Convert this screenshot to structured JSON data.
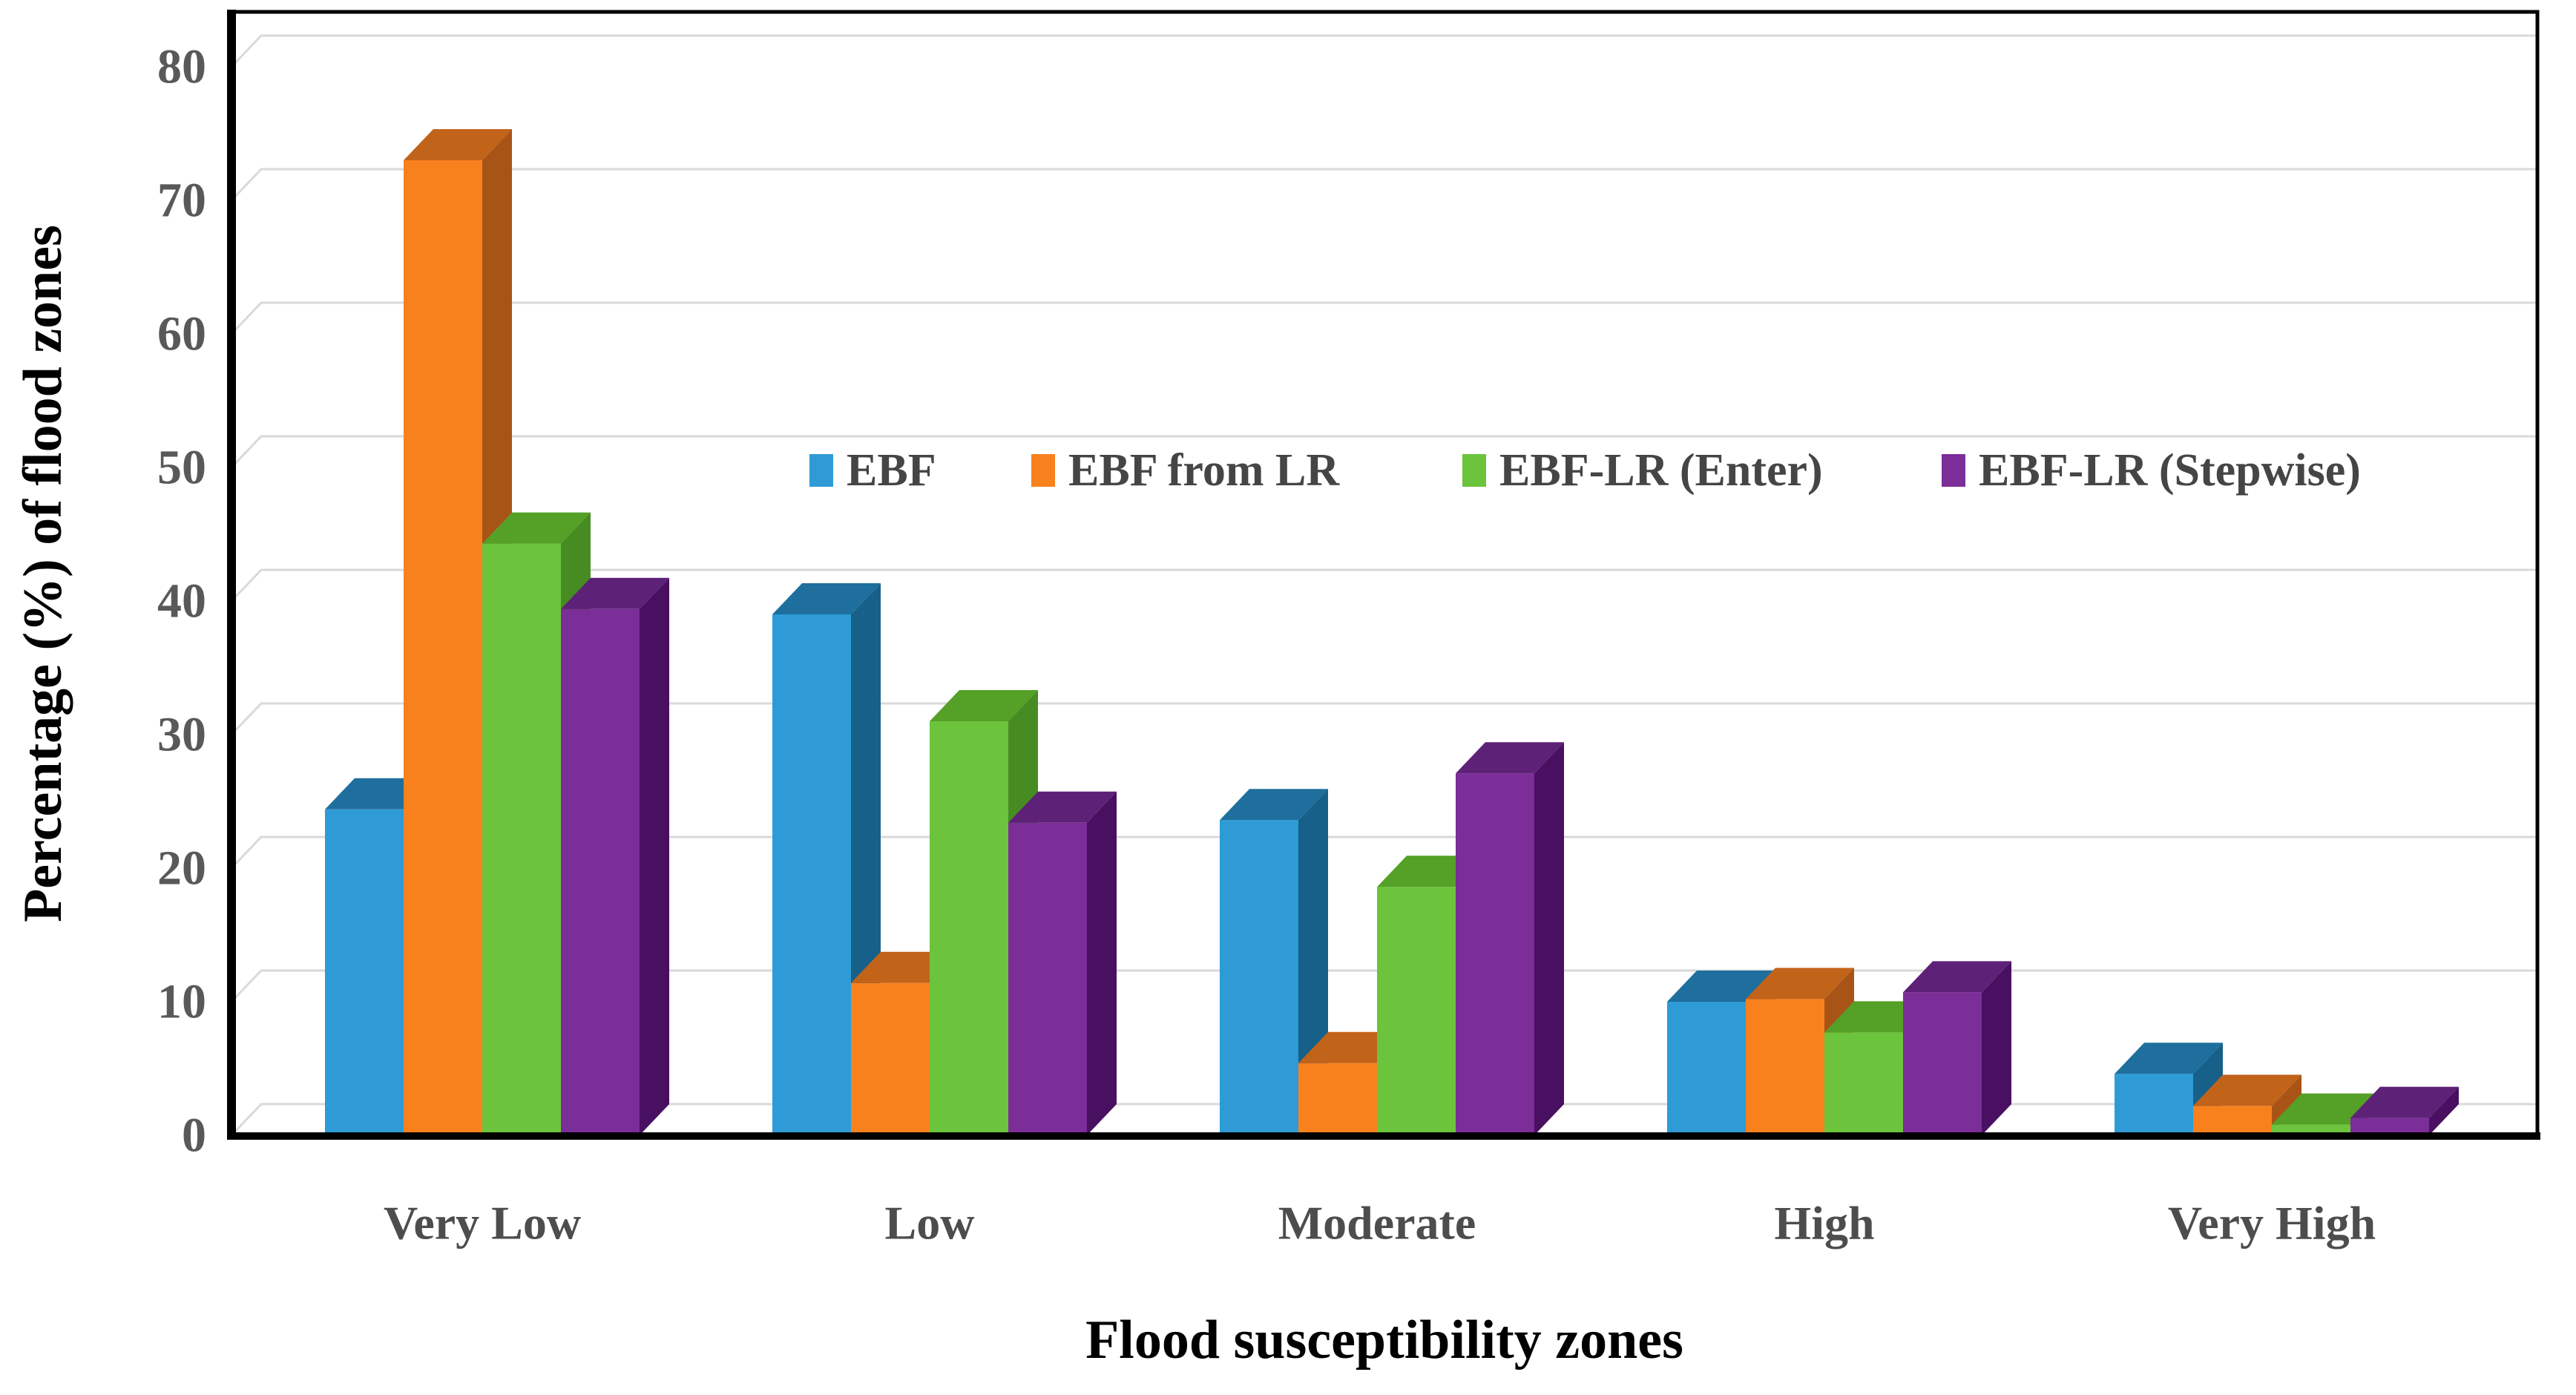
{
  "figure": {
    "type": "3d-clustered-column-chart",
    "background": "#ffffff"
  },
  "chart_data": {
    "type": "bar",
    "title": "",
    "xlabel": "Flood susceptibility zones",
    "ylabel": "Percentage (%) of flood zones",
    "categories": [
      "Very Low",
      "Low",
      "Moderate",
      "High",
      "Very High"
    ],
    "yticks": [
      "0",
      "10",
      "20",
      "30",
      "40",
      "50",
      "60",
      "70",
      "80"
    ],
    "ylim": [
      0,
      80
    ],
    "grid": true,
    "legend_position": "inside-top-center",
    "series": [
      {
        "name": "EBF",
        "values": [
          24.4,
          39.0,
          23.6,
          10.0,
          4.6
        ],
        "color_front": "#2E9BD6",
        "color_top": "#1E6F9D",
        "color_side": "#176089"
      },
      {
        "name": "EBF from LR",
        "values": [
          73.0,
          11.4,
          5.4,
          10.2,
          2.2
        ],
        "color_front": "#F8811E",
        "color_top": "#C2631A",
        "color_side": "#A85417"
      },
      {
        "name": "EBF-LR (Enter)",
        "values": [
          44.3,
          31.0,
          18.6,
          7.7,
          0.8
        ],
        "color_front": "#6BC43C",
        "color_top": "#55A027",
        "color_side": "#478C23"
      },
      {
        "name": "EBF-LR (Stepwise)",
        "values": [
          39.4,
          23.4,
          27.1,
          10.7,
          1.3
        ],
        "color_front": "#7B2D98",
        "color_top": "#5E2178",
        "color_side": "#491061"
      }
    ],
    "colors": {
      "gridline": "#D9D9D9",
      "plot_border": "#000000",
      "tick_label": "#595959",
      "category_label": "#4D4D4D",
      "legend_label": "#454545",
      "title": "#000000"
    }
  }
}
